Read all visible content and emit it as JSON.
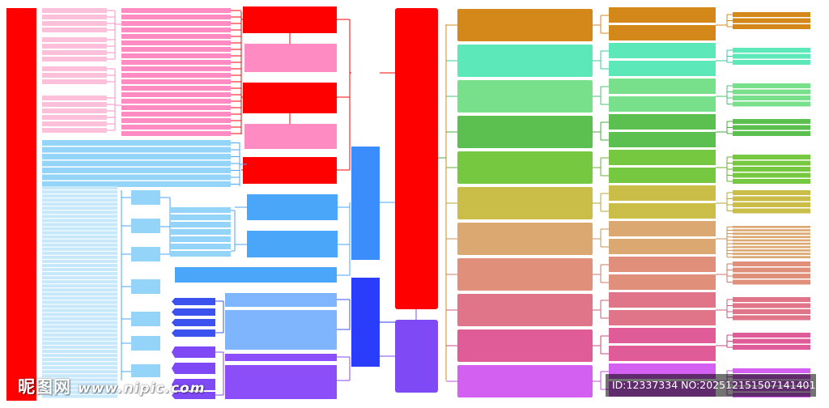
{
  "colors": {
    "red": "#ff0000",
    "pink": "#fe8cc3",
    "pink_light": "#fcc0da",
    "pink_mid": "#f8a0c8",
    "blue_light": "#94d4f8",
    "blue_pale": "#c6e8fa",
    "blue_mid": "#4aa6f8",
    "blue_node": "#3a8dfa",
    "blue_soft": "#7fb5fd",
    "royal": "#3b52ee",
    "deep_blue": "#2a3dfa",
    "violet": "#7f4af5",
    "violet_mid": "#8b4ef8",
    "right_branches": [
      "#d4881a",
      "#5ce8b8",
      "#78e08a",
      "#5cc050",
      "#76c840",
      "#cabe48",
      "#dca872",
      "#e0907a",
      "#e07488",
      "#e05c98",
      "#d460f2"
    ],
    "line_right": [
      "#d4881a",
      "#34c8a0",
      "#48c070",
      "#48a840",
      "#68b030",
      "#b4a830",
      "#c89058",
      "#cc7a66",
      "#cc5c74",
      "#cc4484",
      "#c050dc"
    ]
  },
  "watermark": {
    "logo_text": "昵图网",
    "logo_url": "www.nipic.com",
    "id_text": "ID:12337334 NO:20251215150714140102"
  }
}
